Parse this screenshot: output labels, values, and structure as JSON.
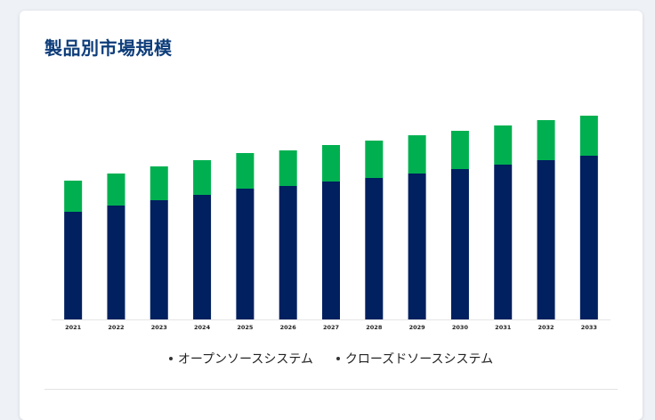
{
  "card": {
    "title": "製品別市場規模"
  },
  "colors": {
    "open_source": "#00205f",
    "closed_source": "#00b050",
    "title": "#0e3d7a"
  },
  "chart_data": {
    "type": "bar",
    "stacked": true,
    "title": "製品別市場規模",
    "xlabel": "",
    "ylabel": "",
    "ylim": [
      0,
      230
    ],
    "grid": false,
    "legend_position": "bottom",
    "categories": [
      "2021",
      "2022",
      "2023",
      "2024",
      "2025",
      "2026",
      "2027",
      "2028",
      "2029",
      "2030",
      "2031",
      "2032",
      "2033"
    ],
    "series": [
      {
        "name": "オープンソースシステム",
        "color": "#00205f",
        "values": [
          121,
          128,
          134,
          140,
          147,
          150,
          155,
          159,
          164,
          169,
          174,
          179,
          184
        ]
      },
      {
        "name": "クローズドソースシステム",
        "color": "#00b050",
        "values": [
          35,
          36,
          38,
          39,
          40,
          40,
          41,
          42,
          43,
          43,
          44,
          45,
          45
        ]
      }
    ]
  }
}
